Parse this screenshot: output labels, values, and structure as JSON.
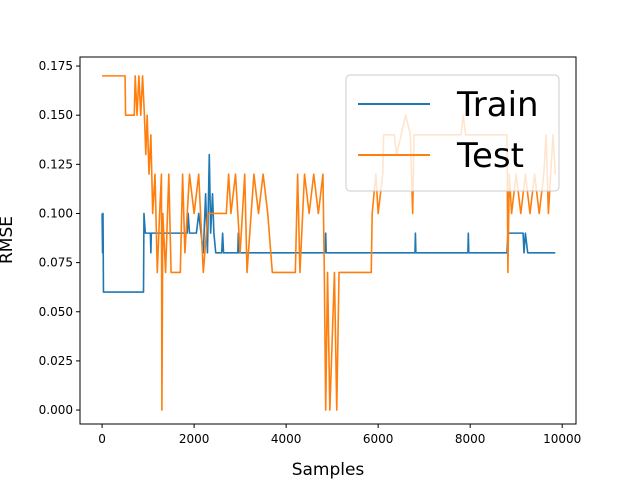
{
  "chart_data": {
    "type": "line",
    "xlabel": "Samples",
    "ylabel": "RMSE",
    "xlim": [
      -480,
      10300
    ],
    "ylim": [
      -0.0071,
      0.1796
    ],
    "xticks": [
      0,
      2000,
      4000,
      6000,
      8000,
      10000
    ],
    "yticks": [
      {
        "value": 0,
        "label": "0.000"
      },
      {
        "value": 0.025,
        "label": "0.025"
      },
      {
        "value": 0.05,
        "label": "0.050"
      },
      {
        "value": 0.075,
        "label": "0.075"
      },
      {
        "value": 0.1,
        "label": "0.100"
      },
      {
        "value": 0.125,
        "label": "0.125"
      },
      {
        "value": 0.15,
        "label": "0.150"
      },
      {
        "value": 0.175,
        "label": "0.175"
      }
    ],
    "legend": "upper right",
    "grid": false,
    "series": [
      {
        "name": "Train",
        "color": "#1f77b4",
        "x": [
          0,
          10,
          20,
          30,
          900,
          910,
          940,
          1050,
          1060,
          1070,
          1850,
          1870,
          1900,
          2050,
          2100,
          2150,
          2200,
          2250,
          2290,
          2330,
          2360,
          2400,
          2430,
          2470,
          2600,
          2620,
          2640,
          2950,
          2960,
          2970,
          4850,
          4860,
          4870,
          6800,
          6810,
          6820,
          7950,
          7960,
          7970,
          8800,
          8820,
          9150,
          9170,
          9200,
          9250,
          9850
        ],
        "values": [
          0.1,
          0.08,
          0.1,
          0.06,
          0.06,
          0.1,
          0.09,
          0.09,
          0.08,
          0.09,
          0.09,
          0.1,
          0.09,
          0.09,
          0.1,
          0.09,
          0.08,
          0.11,
          0.08,
          0.13,
          0.09,
          0.11,
          0.09,
          0.08,
          0.08,
          0.09,
          0.08,
          0.08,
          0.09,
          0.08,
          0.08,
          0.09,
          0.08,
          0.08,
          0.09,
          0.08,
          0.08,
          0.09,
          0.08,
          0.08,
          0.09,
          0.09,
          0.08,
          0.09,
          0.08,
          0.08
        ]
      },
      {
        "name": "Test",
        "color": "#ff7f0e",
        "x": [
          0,
          500,
          510,
          700,
          720,
          760,
          800,
          840,
          880,
          920,
          950,
          980,
          1020,
          1060,
          1100,
          1150,
          1200,
          1250,
          1290,
          1300,
          1320,
          1380,
          1450,
          1500,
          1700,
          1750,
          1800,
          1900,
          2000,
          2100,
          2200,
          2300,
          2400,
          2700,
          2750,
          2800,
          2900,
          3000,
          3100,
          3150,
          3300,
          3400,
          3500,
          3600,
          3700,
          4200,
          4250,
          4300,
          4400,
          4500,
          4600,
          4700,
          4800,
          4830,
          4860,
          4900,
          4950,
          5050,
          5100,
          5150,
          5850,
          5870,
          5950,
          6000,
          6100,
          6120,
          6350,
          6400,
          6500,
          6600,
          6700,
          6750,
          6780,
          7800,
          7850,
          7900,
          8800,
          8820,
          8850,
          8900,
          9000,
          9100,
          9200,
          9300,
          9400,
          9500,
          9600,
          9650,
          9700,
          9800,
          9850
        ],
        "values": [
          0.17,
          0.17,
          0.15,
          0.15,
          0.17,
          0.15,
          0.17,
          0.15,
          0.17,
          0.15,
          0.13,
          0.15,
          0.12,
          0.14,
          0.1,
          0.12,
          0.07,
          0.1,
          0.12,
          0.0,
          0.1,
          0.07,
          0.12,
          0.07,
          0.07,
          0.12,
          0.08,
          0.12,
          0.1,
          0.12,
          0.07,
          0.1,
          0.1,
          0.1,
          0.12,
          0.1,
          0.12,
          0.08,
          0.12,
          0.07,
          0.12,
          0.1,
          0.12,
          0.1,
          0.07,
          0.07,
          0.12,
          0.07,
          0.12,
          0.1,
          0.12,
          0.1,
          0.12,
          0.07,
          0.0,
          0.07,
          0.0,
          0.07,
          0.0,
          0.07,
          0.07,
          0.1,
          0.12,
          0.1,
          0.12,
          0.14,
          0.14,
          0.13,
          0.14,
          0.15,
          0.14,
          0.1,
          0.14,
          0.14,
          0.15,
          0.14,
          0.14,
          0.07,
          0.12,
          0.1,
          0.12,
          0.1,
          0.12,
          0.1,
          0.12,
          0.1,
          0.12,
          0.14,
          0.1,
          0.14,
          0.12
        ]
      }
    ]
  }
}
